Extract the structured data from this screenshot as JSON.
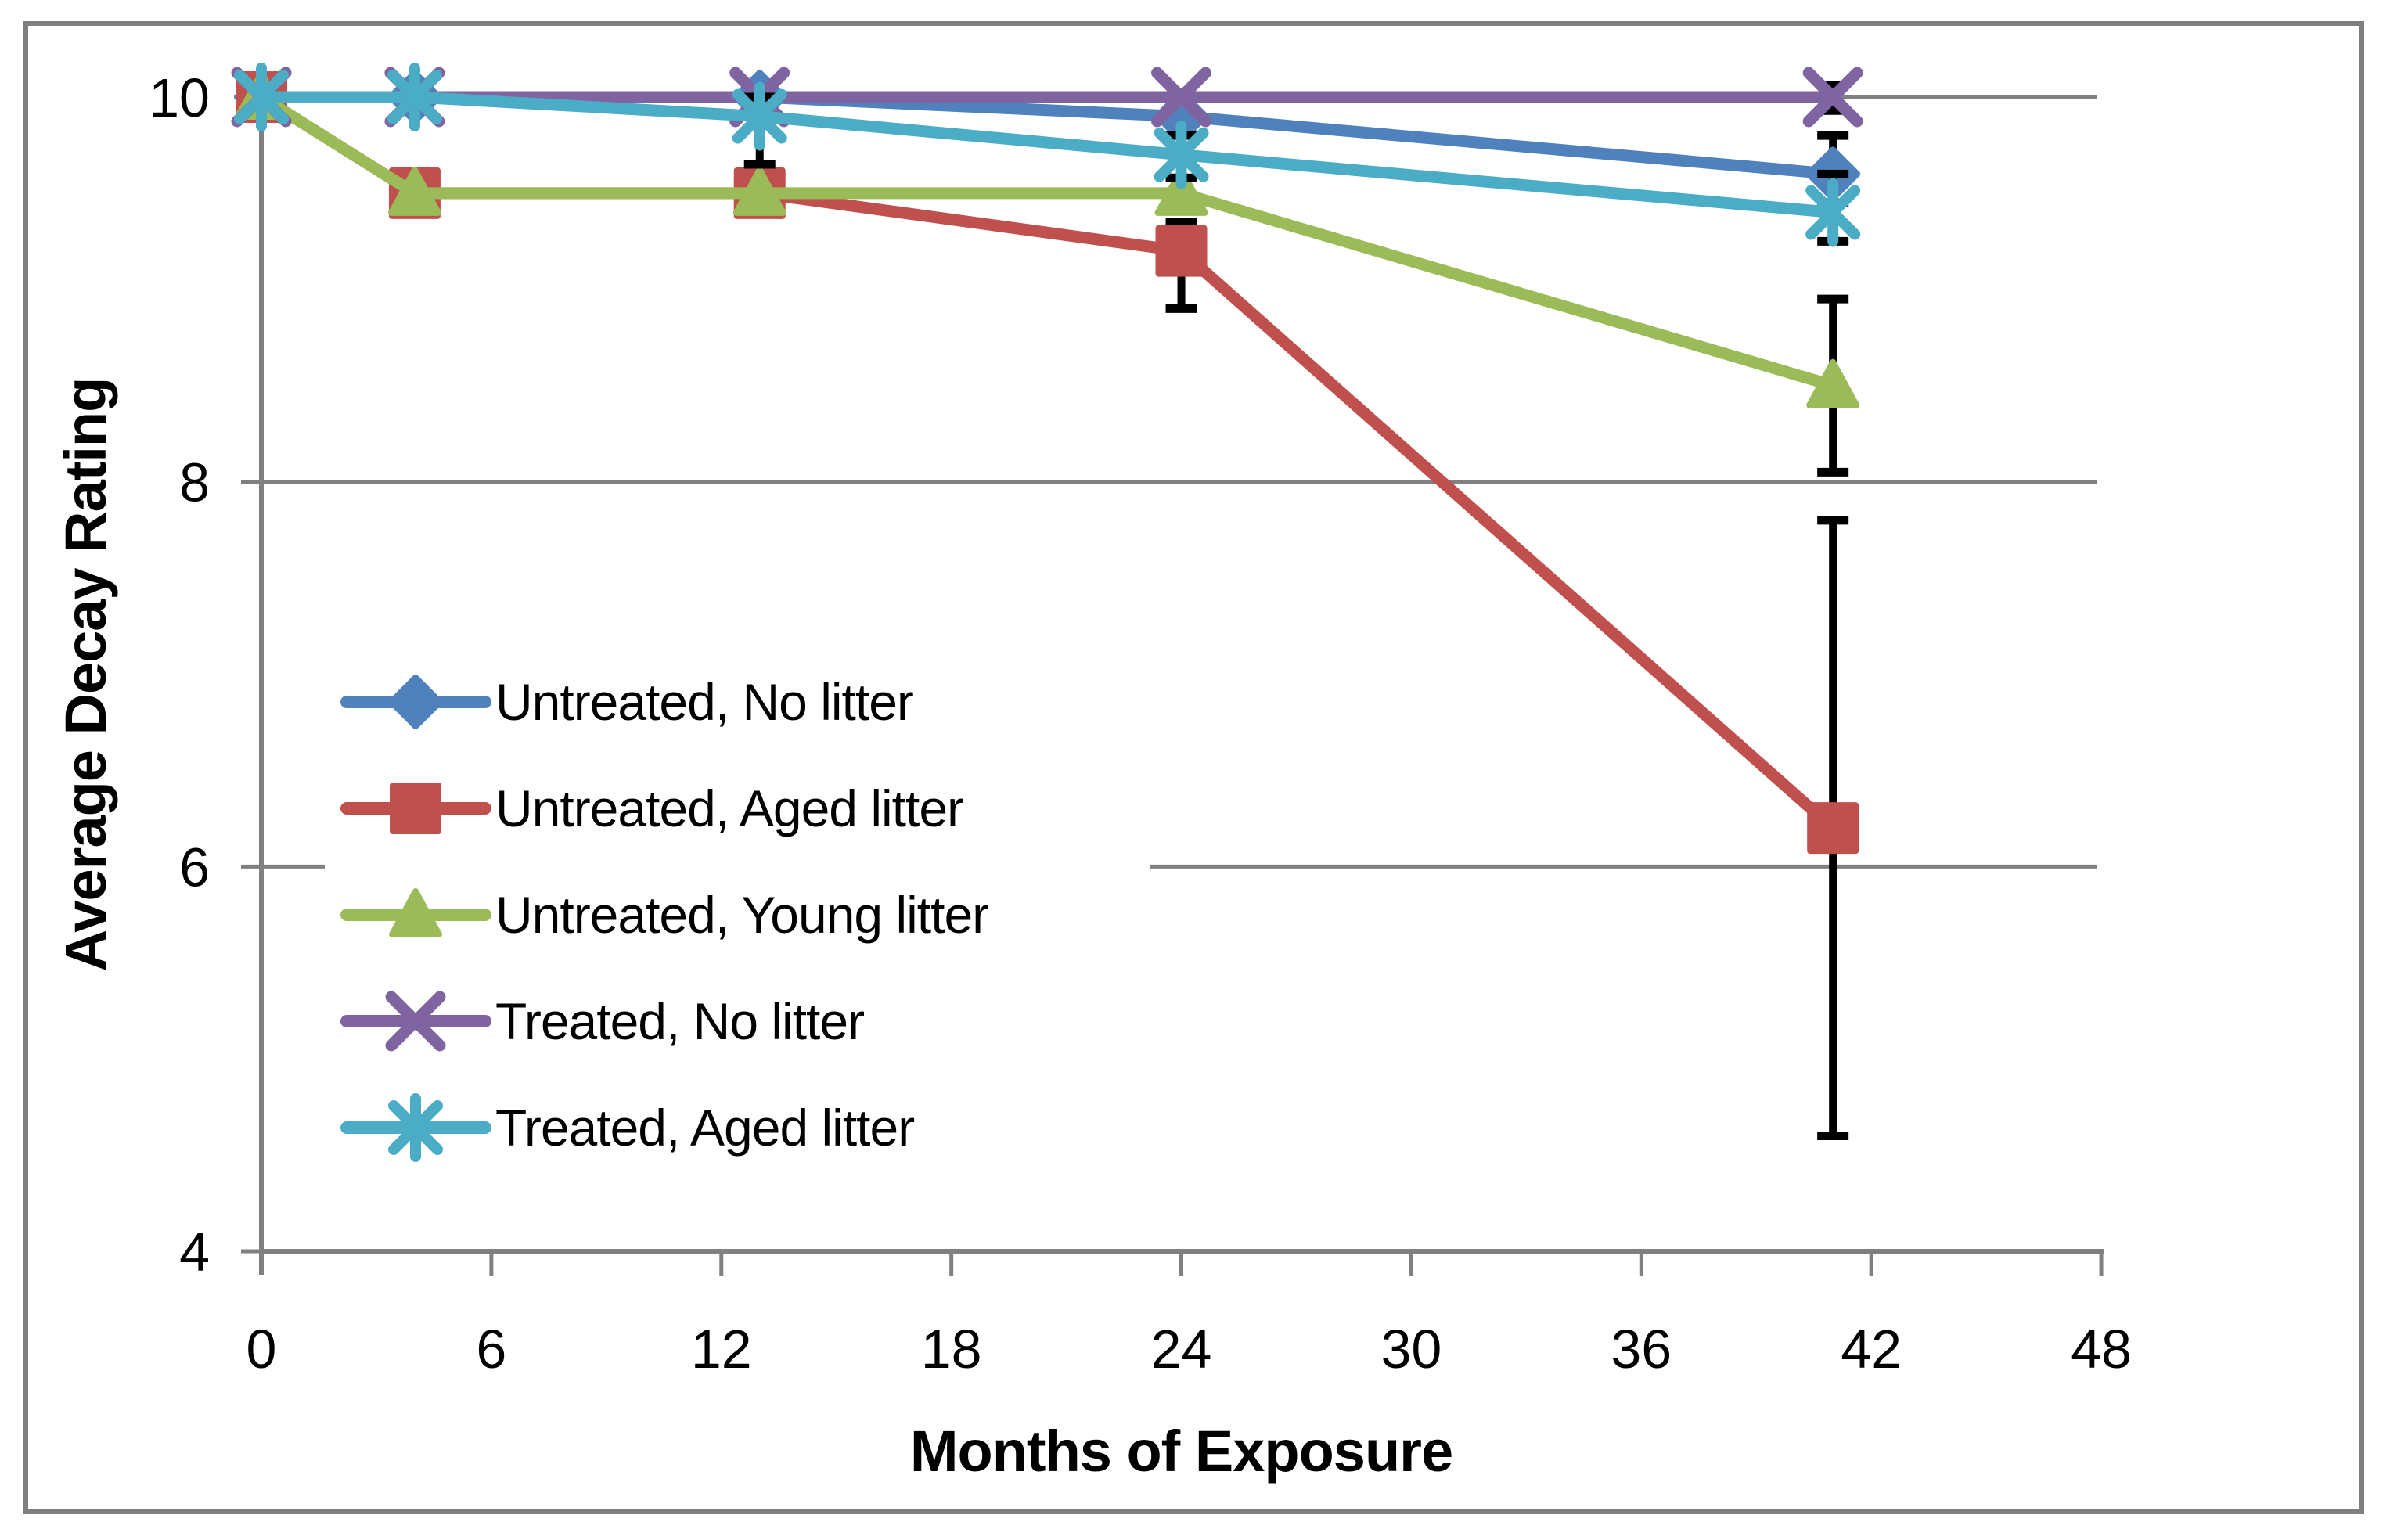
{
  "chart_data": {
    "type": "line",
    "title": "",
    "xlabel": "Months of Exposure",
    "ylabel": "Average Decay Rating",
    "x": [
      0,
      4,
      13,
      24,
      41
    ],
    "x_ticks": [
      0,
      6,
      12,
      18,
      24,
      30,
      36,
      42,
      48
    ],
    "y_ticks": [
      4,
      6,
      8,
      10
    ],
    "xlim": [
      0,
      48
    ],
    "ylim": [
      4,
      10
    ],
    "grid": "horizontal-major",
    "legend_position": "inside-center-left",
    "series": [
      {
        "name": "Untreated, No litter",
        "color": "#4F81BD",
        "marker": "diamond",
        "values": [
          10,
          10,
          10,
          9.9,
          9.6
        ],
        "error_bars": [
          null,
          null,
          null,
          null,
          [
            9.45,
            9.8
          ]
        ]
      },
      {
        "name": "Untreated, Aged litter",
        "color": "#C0504D",
        "marker": "square",
        "values": [
          10,
          9.5,
          9.5,
          9.2,
          6.2
        ],
        "error_bars": [
          null,
          null,
          null,
          [
            8.9,
            9.35
          ],
          [
            4.6,
            7.8
          ]
        ]
      },
      {
        "name": "Untreated, Young litter",
        "color": "#9BBB59",
        "marker": "triangle",
        "values": [
          10,
          9.5,
          9.5,
          9.5,
          8.5
        ],
        "error_bars": [
          null,
          null,
          null,
          null,
          [
            8.05,
            8.95
          ]
        ]
      },
      {
        "name": "Treated, No litter",
        "color": "#8064A2",
        "marker": "x",
        "values": [
          10,
          10,
          10,
          10,
          10
        ],
        "error_bars": [
          null,
          null,
          null,
          null,
          [
            9.93,
            10.06
          ]
        ]
      },
      {
        "name": "Treated, Aged litter",
        "color": "#4BACC6",
        "marker": "asterisk",
        "values": [
          10,
          10,
          9.9,
          9.7,
          9.4
        ],
        "error_bars": [
          null,
          null,
          [
            9.65,
            10.0
          ],
          [
            9.58,
            9.8
          ],
          [
            9.25,
            9.6
          ]
        ]
      }
    ],
    "axis_color": "#808080",
    "border_color": "#7F7F7F",
    "error_bar_color": "#000000",
    "background_color": "#FFFFFF"
  }
}
